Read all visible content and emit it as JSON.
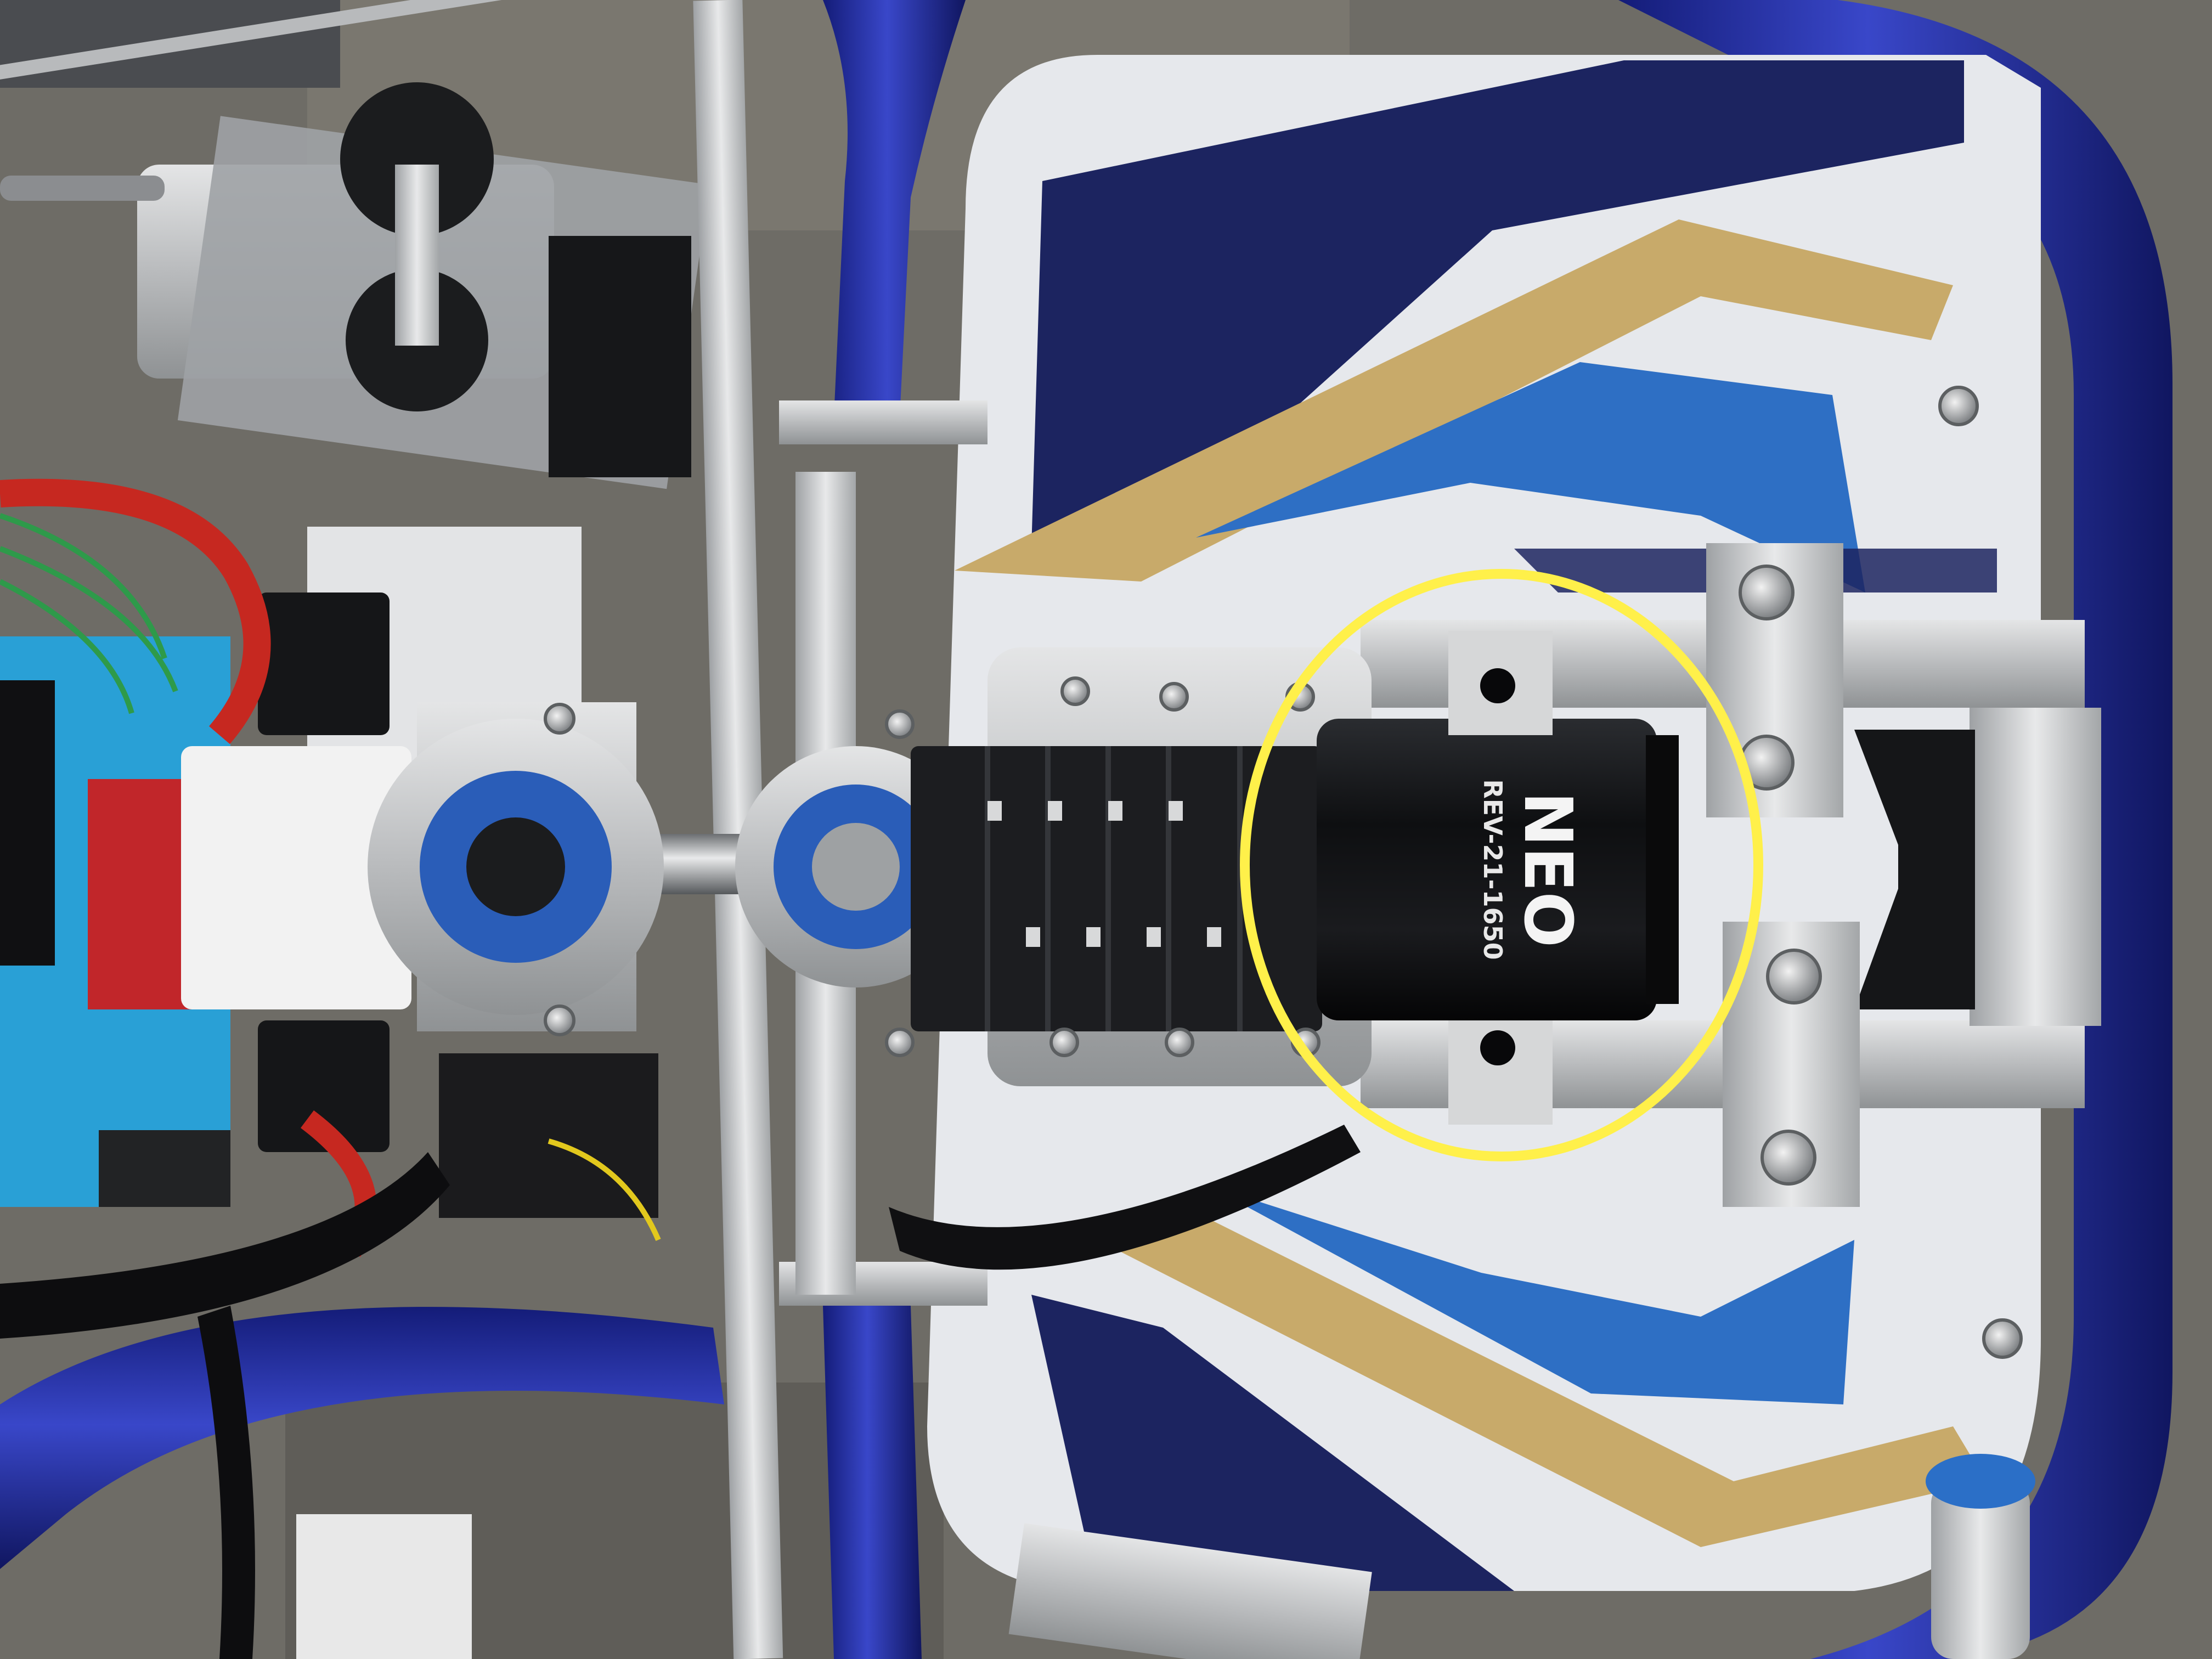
{
  "motor": {
    "brand_text": "NEO",
    "model_text": "REV-21-1650"
  },
  "annotation": {
    "shape": "ellipse",
    "color": "#fff04a"
  },
  "colors": {
    "frame_blue": "#1f2a9e",
    "floor": "#6e6c66",
    "floorpan_white": "#e6e8ec",
    "decal_navy": "#1c2460",
    "decal_blue": "#2e6fc4",
    "decal_gold": "#c8aa6a",
    "aluminum": "#c9cacb",
    "motor_black": "#111214",
    "wire_red": "#c62820"
  }
}
